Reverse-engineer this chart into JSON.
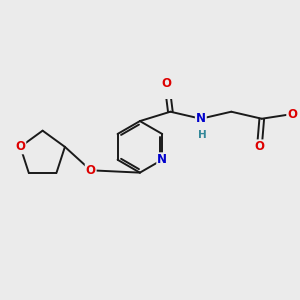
{
  "bg_color": "#ebebeb",
  "bond_color": "#1a1a1a",
  "atom_colors": {
    "O": "#dd0000",
    "N": "#0000cc",
    "H": "#338899",
    "C": "#1a1a1a"
  },
  "font_size_atom": 8.5,
  "fig_size": [
    3.0,
    3.0
  ],
  "dpi": 100
}
